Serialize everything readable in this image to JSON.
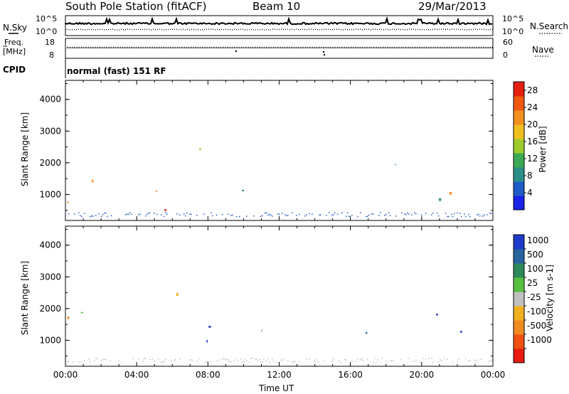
{
  "header": {
    "title": "South Pole Station (fitACF)",
    "beam": "Beam 10",
    "date": "29/Mar/2013"
  },
  "status_panels": {
    "left_labels": [
      "N.Sky",
      "Freq.",
      "[MHz]",
      "CPID"
    ],
    "right_labels": [
      "N.Search",
      "Nave"
    ],
    "noise_ticks_left": [
      "10^5",
      "10^0"
    ],
    "noise_ticks_right": [
      "10^5",
      "10^0"
    ],
    "freq_ticks": [
      "18",
      "8"
    ],
    "nave_ticks": [
      "60",
      "0"
    ],
    "cpid_text": "normal (fast) 151 RF"
  },
  "time_axis": {
    "ticks": [
      "00:00",
      "04:00",
      "08:00",
      "12:00",
      "16:00",
      "20:00",
      "00:00"
    ],
    "label": "Time UT"
  },
  "chart_data": [
    {
      "type": "heatmap",
      "name": "power",
      "xlabel": "Time UT",
      "ylabel": "Slant Range [km]",
      "xlim": [
        0,
        24
      ],
      "ylim": [
        180,
        4600
      ],
      "yticks": [
        1000,
        2000,
        3000,
        4000
      ],
      "colorbar": {
        "label": "Power [dB]",
        "ticks": [
          "4",
          "8",
          "12",
          "16",
          "20",
          "24",
          "28"
        ],
        "range": [
          0,
          30
        ],
        "colors": [
          "#1a24e6",
          "#1f5cc8",
          "#2c8f8a",
          "#3caa55",
          "#9ccc2c",
          "#f0c020",
          "#f39020",
          "#f05a10",
          "#e42010"
        ]
      },
      "echo_regions": [
        {
          "t0": 0.0,
          "t1": 3.5,
          "r0": 300,
          "r1": 2300,
          "level": 0.55
        },
        {
          "t0": 2.5,
          "t1": 9.0,
          "r0": 500,
          "r1": 1800,
          "level": 0.8
        },
        {
          "t0": 5.0,
          "t1": 9.5,
          "r0": 1300,
          "r1": 2500,
          "level": 0.6
        },
        {
          "t0": 9.5,
          "t1": 11.5,
          "r0": 300,
          "r1": 1900,
          "level": 0.35
        },
        {
          "t0": 11.5,
          "t1": 13.5,
          "r0": 250,
          "r1": 900,
          "level": 0.65
        },
        {
          "t0": 14.5,
          "t1": 16.5,
          "r0": 250,
          "r1": 1000,
          "level": 0.3
        },
        {
          "t0": 16.5,
          "t1": 19.5,
          "r0": 300,
          "r1": 2300,
          "level": 0.6
        },
        {
          "t0": 19.5,
          "t1": 24.0,
          "r0": 600,
          "r1": 2600,
          "level": 0.45
        }
      ]
    },
    {
      "type": "heatmap",
      "name": "velocity",
      "xlabel": "Time UT",
      "ylabel": "Slant Range [km]",
      "xlim": [
        0,
        24
      ],
      "ylim": [
        180,
        4600
      ],
      "yticks": [
        1000,
        2000,
        3000,
        4000
      ],
      "colorbar": {
        "label": "Velocity [m s-1]",
        "ticks": [
          "1000",
          "500",
          "100",
          "25",
          "-25",
          "-100",
          "-500",
          "-1000"
        ],
        "colors": [
          "#1f3cc8",
          "#2a64a0",
          "#2f8a5a",
          "#58c040",
          "#c0c0c0",
          "#f0b020",
          "#f08a20",
          "#f05010",
          "#e81a10"
        ]
      },
      "echo_regions": [
        {
          "t0": 0.0,
          "t1": 3.5,
          "r0": 300,
          "r1": 2300,
          "level": 0.45
        },
        {
          "t0": 2.5,
          "t1": 9.0,
          "r0": 500,
          "r1": 1900,
          "level": 0.25
        },
        {
          "t0": 5.0,
          "t1": 9.5,
          "r0": 1300,
          "r1": 2500,
          "level": 0.3
        },
        {
          "t0": 9.5,
          "t1": 11.5,
          "r0": 300,
          "r1": 1900,
          "level": 0.55
        },
        {
          "t0": 11.5,
          "t1": 13.5,
          "r0": 250,
          "r1": 900,
          "level": 0.7
        },
        {
          "t0": 14.5,
          "t1": 16.5,
          "r0": 250,
          "r1": 1000,
          "level": 0.6
        },
        {
          "t0": 16.5,
          "t1": 19.5,
          "r0": 300,
          "r1": 2300,
          "level": 0.35
        },
        {
          "t0": 19.5,
          "t1": 24.0,
          "r0": 600,
          "r1": 2600,
          "level": 0.3
        }
      ]
    }
  ]
}
